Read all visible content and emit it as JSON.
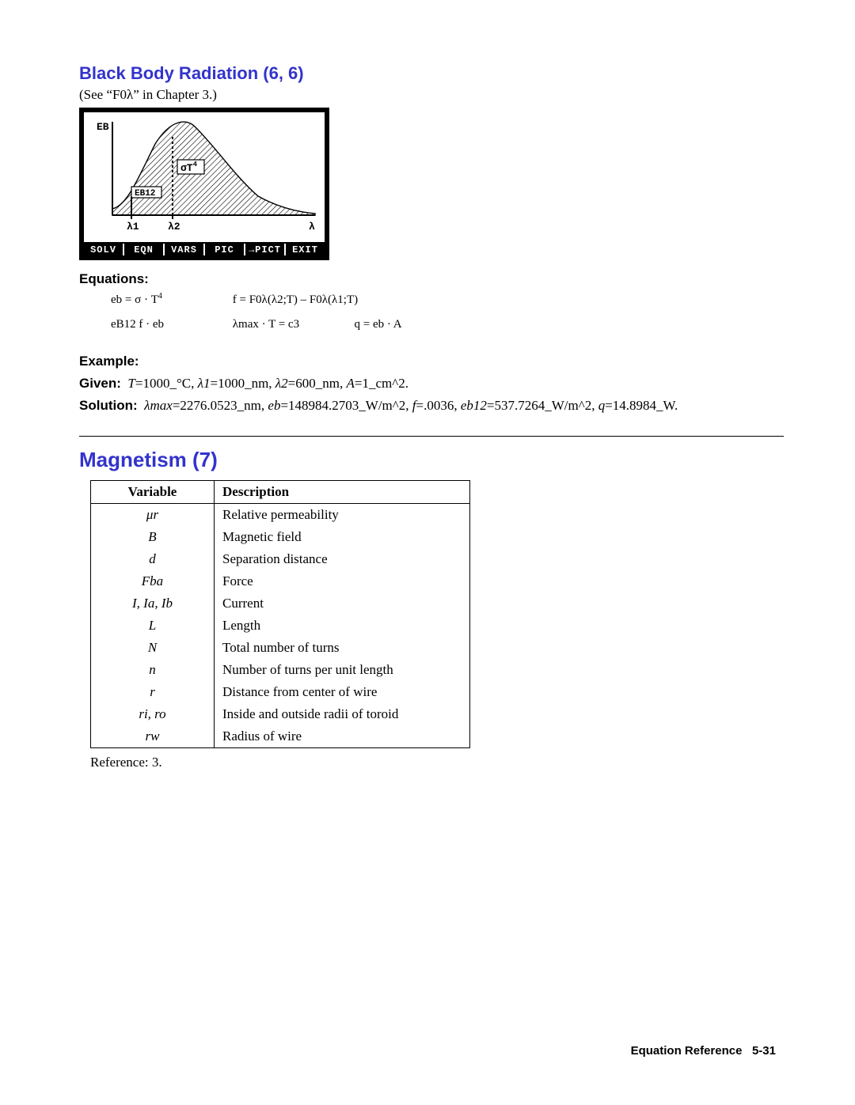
{
  "section1": {
    "title": "Black Body Radiation (6, 6)",
    "note": "(See “F0λ” in Chapter 3.)",
    "lcd": {
      "y_label": "EB",
      "sigma_label": "σT",
      "sigma_exp": "4",
      "eb12_label": "EB12",
      "x1": "λ1",
      "x2": "λ2",
      "xend": "λ",
      "softkeys": [
        "SOLV",
        "EQN",
        "VARS",
        "PIC",
        "→PICT",
        "EXIT"
      ]
    },
    "equations_label": "Equations:",
    "equations": {
      "row1a": "eb = σ · T",
      "row1a_sup": "4",
      "row1b": "f = F0λ(λ2;T) – F0λ(λ1;T)",
      "row2a": "eB12  f · eb",
      "row2b": "λmax · T = c3",
      "row2c": "q = eb · A"
    },
    "example_label": "Example:",
    "given_label": "Given:",
    "given_text": "T=1000_°C, λ1=1000_nm, λ2=600_nm, A=1_cm^2.",
    "solution_label": "Solution:",
    "solution_text": "λmax=2276.0523_nm, eb=148984.2703_W/m^2, f=.0036, eb12=537.7264_W/m^2, q=14.8984_W."
  },
  "section2": {
    "title": "Magnetism (7)",
    "table": {
      "headers": [
        "Variable",
        "Description"
      ],
      "rows": [
        [
          "μr",
          "Relative permeability"
        ],
        [
          "B",
          "Magnetic field"
        ],
        [
          "d",
          "Separation distance"
        ],
        [
          "Fba",
          "Force"
        ],
        [
          "I, Ia, Ib",
          "Current"
        ],
        [
          "L",
          "Length"
        ],
        [
          "N",
          "Total number of turns"
        ],
        [
          "n",
          "Number of turns per unit length"
        ],
        [
          "r",
          "Distance from center of wire"
        ],
        [
          "ri, ro",
          "Inside and outside radii of toroid"
        ],
        [
          "rw",
          "Radius of wire"
        ]
      ]
    },
    "reference": "Reference: 3."
  },
  "footer": {
    "label": "Equation Reference",
    "page": "5-31"
  },
  "colors": {
    "heading": "#3333cc",
    "text": "#000000",
    "bg": "#ffffff"
  }
}
